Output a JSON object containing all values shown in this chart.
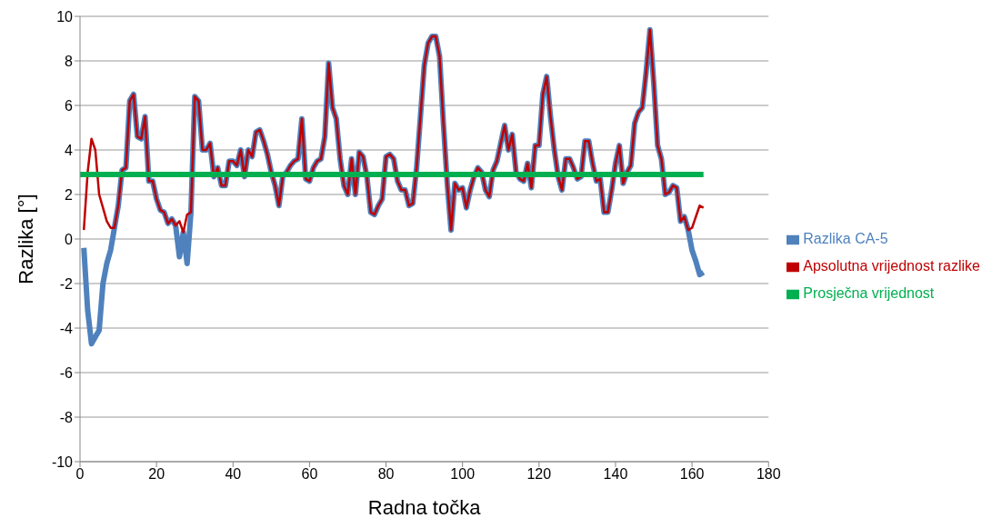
{
  "chart_data": {
    "type": "line",
    "xlabel": "Radna točka",
    "ylabel": "Razlika  [°]",
    "xlim": [
      0,
      180
    ],
    "xticks": [
      0,
      20,
      40,
      60,
      80,
      100,
      120,
      140,
      160,
      180
    ],
    "ylim": [
      -10,
      10
    ],
    "yticks": [
      -10,
      -8,
      -6,
      -4,
      -2,
      0,
      2,
      4,
      6,
      8,
      10
    ],
    "grid": "y",
    "legend": "right",
    "marker": "none",
    "line_style": "solid",
    "series": [
      {
        "name": "Razlika CA-5",
        "color": "#4f81bd",
        "x": [
          1,
          2,
          3,
          4,
          5,
          6,
          7,
          8,
          9,
          10,
          11,
          12,
          13,
          14,
          15,
          16,
          17,
          18,
          19,
          20,
          21,
          22,
          23,
          24,
          25,
          26,
          27,
          28,
          29,
          30,
          31,
          32,
          33,
          34,
          35,
          36,
          37,
          38,
          39,
          40,
          41,
          42,
          43,
          44,
          45,
          46,
          47,
          48,
          49,
          50,
          51,
          52,
          53,
          54,
          55,
          56,
          57,
          58,
          59,
          60,
          61,
          62,
          63,
          64,
          65,
          66,
          67,
          68,
          69,
          70,
          71,
          72,
          73,
          74,
          75,
          76,
          77,
          78,
          79,
          80,
          81,
          82,
          83,
          84,
          85,
          86,
          87,
          88,
          89,
          90,
          91,
          92,
          93,
          94,
          95,
          96,
          97,
          98,
          99,
          100,
          101,
          102,
          103,
          104,
          105,
          106,
          107,
          108,
          109,
          110,
          111,
          112,
          113,
          114,
          115,
          116,
          117,
          118,
          119,
          120,
          121,
          122,
          123,
          124,
          125,
          126,
          127,
          128,
          129,
          130,
          131,
          132,
          133,
          134,
          135,
          136,
          137,
          138,
          139,
          140,
          141,
          142,
          143,
          144,
          145,
          146,
          147,
          148,
          149,
          150,
          151,
          152,
          153,
          154,
          155,
          156,
          157,
          158,
          159,
          160,
          161,
          162,
          163
        ],
        "values": [
          -0.4,
          -3.2,
          -4.7,
          -4.4,
          -4.1,
          -2.0,
          -1.1,
          -0.5,
          0.5,
          1.5,
          3.1,
          3.2,
          6.2,
          6.5,
          4.6,
          4.5,
          5.5,
          2.6,
          2.6,
          1.8,
          1.3,
          1.2,
          0.7,
          0.9,
          0.6,
          -0.8,
          0.3,
          -1.1,
          1.2,
          6.4,
          6.2,
          4.0,
          4.0,
          4.3,
          2.8,
          3.2,
          2.4,
          2.4,
          3.5,
          3.5,
          3.3,
          4.0,
          2.8,
          4.0,
          3.7,
          4.8,
          4.9,
          4.4,
          3.8,
          3.0,
          2.4,
          1.5,
          2.8,
          3.0,
          3.3,
          3.5,
          3.6,
          5.4,
          2.7,
          2.6,
          3.2,
          3.5,
          3.6,
          4.6,
          7.9,
          5.9,
          5.4,
          3.6,
          2.4,
          2.0,
          3.6,
          2.0,
          3.9,
          3.7,
          2.8,
          1.2,
          1.1,
          1.5,
          1.8,
          3.7,
          3.8,
          3.6,
          2.6,
          2.2,
          2.2,
          1.5,
          1.6,
          3.2,
          5.5,
          7.8,
          8.8,
          9.1,
          9.1,
          8.2,
          5.2,
          2.5,
          0.4,
          2.5,
          2.2,
          2.3,
          1.4,
          2.2,
          2.8,
          3.2,
          3.0,
          2.2,
          1.9,
          3.1,
          3.5,
          4.3,
          5.1,
          4.0,
          4.7,
          3.0,
          2.7,
          2.6,
          3.4,
          2.3,
          4.2,
          4.2,
          6.5,
          7.3,
          5.5,
          4.0,
          2.8,
          2.2,
          3.6,
          3.6,
          3.2,
          2.7,
          2.8,
          4.4,
          4.4,
          3.4,
          2.6,
          2.7,
          1.2,
          1.2,
          2.2,
          3.4,
          4.2,
          2.5,
          3.0,
          3.3,
          5.2,
          5.7,
          5.9,
          7.5,
          9.4,
          7.0,
          4.2,
          3.6,
          2.0,
          2.1,
          2.4,
          2.3,
          0.8,
          1.0,
          0.4,
          -0.5,
          -1.0,
          -1.6,
          -1.5
        ]
      },
      {
        "name": "Apsolutna vrijednost razlike",
        "color": "#c00000",
        "x": [
          1,
          2,
          3,
          4,
          5,
          6,
          7,
          8,
          9,
          10,
          11,
          12,
          13,
          14,
          15,
          16,
          17,
          18,
          19,
          20,
          21,
          22,
          23,
          24,
          25,
          26,
          27,
          28,
          29,
          30,
          31,
          32,
          33,
          34,
          35,
          36,
          37,
          38,
          39,
          40,
          41,
          42,
          43,
          44,
          45,
          46,
          47,
          48,
          49,
          50,
          51,
          52,
          53,
          54,
          55,
          56,
          57,
          58,
          59,
          60,
          61,
          62,
          63,
          64,
          65,
          66,
          67,
          68,
          69,
          70,
          71,
          72,
          73,
          74,
          75,
          76,
          77,
          78,
          79,
          80,
          81,
          82,
          83,
          84,
          85,
          86,
          87,
          88,
          89,
          90,
          91,
          92,
          93,
          94,
          95,
          96,
          97,
          98,
          99,
          100,
          101,
          102,
          103,
          104,
          105,
          106,
          107,
          108,
          109,
          110,
          111,
          112,
          113,
          114,
          115,
          116,
          117,
          118,
          119,
          120,
          121,
          122,
          123,
          124,
          125,
          126,
          127,
          128,
          129,
          130,
          131,
          132,
          133,
          134,
          135,
          136,
          137,
          138,
          139,
          140,
          141,
          142,
          143,
          144,
          145,
          146,
          147,
          148,
          149,
          150,
          151,
          152,
          153,
          154,
          155,
          156,
          157,
          158,
          159,
          160,
          161,
          162,
          163
        ],
        "values": [
          0.4,
          3.0,
          4.5,
          4.0,
          2.0,
          1.4,
          0.8,
          0.5,
          0.5,
          1.5,
          3.1,
          3.2,
          6.2,
          6.5,
          4.6,
          4.5,
          5.5,
          2.6,
          2.6,
          1.8,
          1.3,
          1.2,
          0.7,
          0.9,
          0.6,
          0.8,
          0.3,
          1.1,
          1.2,
          6.4,
          6.2,
          4.0,
          4.0,
          4.3,
          2.8,
          3.2,
          2.4,
          2.4,
          3.5,
          3.5,
          3.3,
          4.0,
          2.8,
          4.0,
          3.7,
          4.8,
          4.9,
          4.4,
          3.8,
          3.0,
          2.4,
          1.5,
          2.8,
          3.0,
          3.3,
          3.5,
          3.6,
          5.4,
          2.7,
          2.6,
          3.2,
          3.5,
          3.6,
          4.6,
          7.9,
          5.9,
          5.4,
          3.6,
          2.4,
          2.0,
          3.6,
          2.0,
          3.9,
          3.7,
          2.8,
          1.2,
          1.1,
          1.5,
          1.8,
          3.7,
          3.8,
          3.6,
          2.6,
          2.2,
          2.2,
          1.5,
          1.6,
          3.2,
          5.5,
          7.8,
          8.8,
          9.1,
          9.1,
          8.2,
          5.2,
          2.5,
          0.4,
          2.5,
          2.2,
          2.3,
          1.4,
          2.2,
          2.8,
          3.2,
          3.0,
          2.2,
          1.9,
          3.1,
          3.5,
          4.3,
          5.1,
          4.0,
          4.7,
          3.0,
          2.7,
          2.6,
          3.4,
          2.3,
          4.2,
          4.2,
          6.5,
          7.3,
          5.5,
          4.0,
          2.8,
          2.2,
          3.6,
          3.6,
          3.2,
          2.7,
          2.8,
          4.4,
          4.4,
          3.4,
          2.6,
          2.7,
          1.2,
          1.2,
          2.2,
          3.4,
          4.2,
          2.5,
          3.0,
          3.3,
          5.2,
          5.7,
          5.9,
          7.5,
          9.4,
          7.0,
          4.2,
          3.6,
          2.0,
          2.1,
          2.4,
          2.3,
          0.8,
          1.0,
          0.4,
          0.5,
          1.0,
          1.5,
          1.4
        ]
      },
      {
        "name": "Prosječna vrijednost",
        "color": "#00b050",
        "x": [
          0,
          163
        ],
        "values": [
          2.9,
          2.9
        ]
      }
    ]
  }
}
